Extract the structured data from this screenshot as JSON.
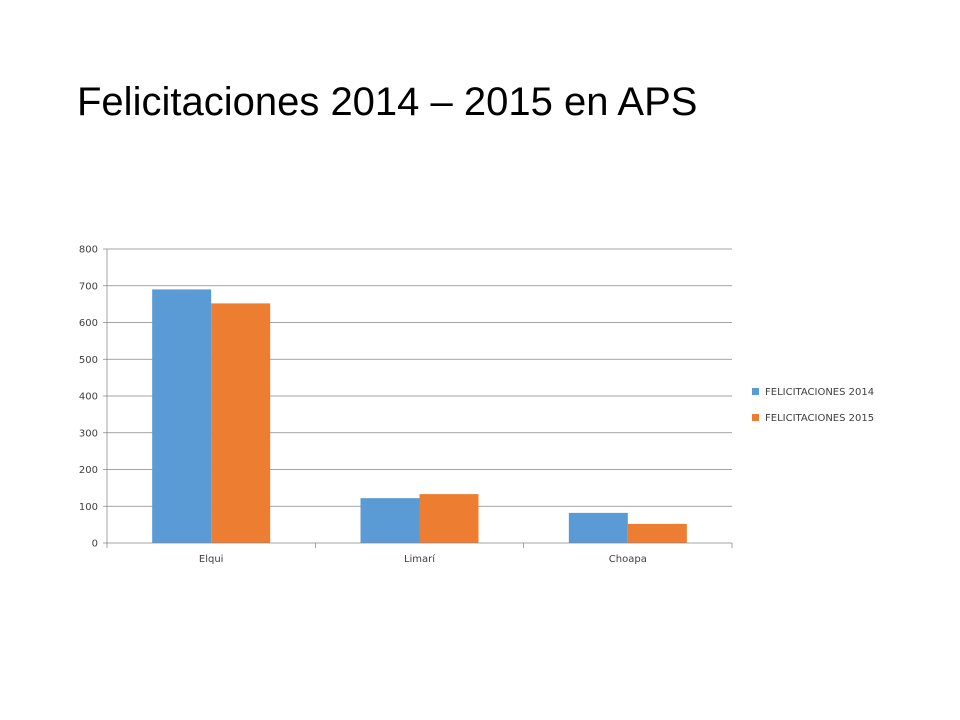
{
  "slide": {
    "title": "Felicitaciones 2014 – 2015 en APS"
  },
  "colors": {
    "series_2014": "#5B9BD5",
    "series_2015": "#ED7D31",
    "grid": "#868686",
    "axis": "#868686"
  },
  "chart_data": {
    "type": "bar",
    "categories": [
      "Elqui",
      "Limarí",
      "Choapa"
    ],
    "series": [
      {
        "name": "FELICITACIONES 2014",
        "values": [
          690,
          122,
          82
        ]
      },
      {
        "name": "FELICITACIONES 2015",
        "values": [
          652,
          133,
          52
        ]
      }
    ],
    "title": "",
    "xlabel": "",
    "ylabel": "",
    "ylim": [
      0,
      800
    ],
    "yticks": [
      0,
      100,
      200,
      300,
      400,
      500,
      600,
      700,
      800
    ],
    "grid": true,
    "legend": "right"
  }
}
